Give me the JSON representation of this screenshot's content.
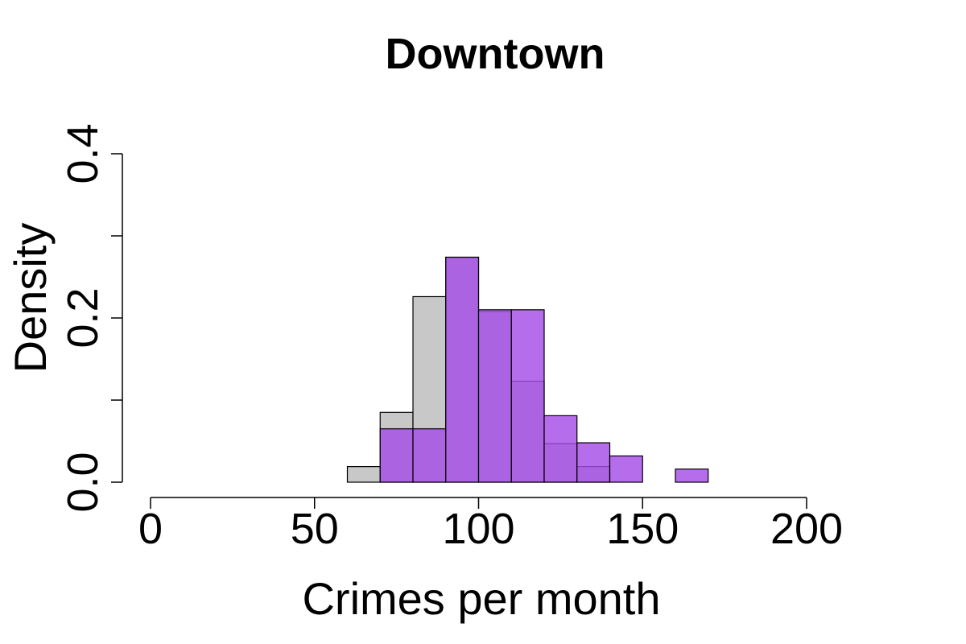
{
  "chart_data": {
    "type": "histogram",
    "title": "Downtown",
    "xlabel": "Crimes per month",
    "ylabel": "Density",
    "xlim": [
      0,
      200
    ],
    "ylim": [
      0,
      0.4
    ],
    "x_ticks": [
      "0",
      "50",
      "100",
      "150",
      "200"
    ],
    "y_ticks": [
      "0.0",
      "0.2",
      "0.4"
    ],
    "y_tick_positions": [
      0,
      0.1,
      0.2,
      0.3,
      0.4
    ],
    "bin_width": 10,
    "bin_starts": [
      0,
      10,
      20,
      30,
      40,
      50,
      60,
      70,
      80,
      90,
      100,
      110,
      120,
      130,
      140,
      150,
      160
    ],
    "series": [
      {
        "color": "#c8c8c8",
        "densities": [
          0,
          0,
          0,
          0,
          0,
          0,
          0.019,
          0.085,
          0.226,
          0.274,
          0.208,
          0.123,
          0.047,
          0.019,
          0,
          0,
          0
        ]
      },
      {
        "color": "#a64de8",
        "opacity": 0.82,
        "densities": [
          0,
          0,
          0,
          0,
          0,
          0,
          0,
          0.065,
          0.065,
          0.274,
          0.21,
          0.21,
          0.081,
          0.048,
          0.032,
          0,
          0.016
        ]
      }
    ]
  }
}
